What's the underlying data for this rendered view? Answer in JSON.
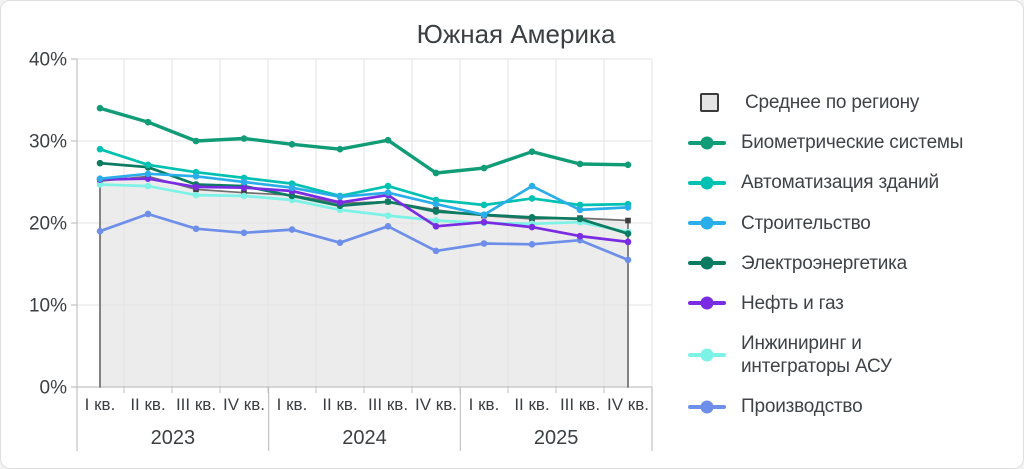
{
  "title": "Южная Америка",
  "style": {
    "text_color": "#3c4043",
    "grid_color": "#e3e3e3",
    "axis_color": "#c2c2c2",
    "background": "#ffffff"
  },
  "chart_data": {
    "type": "line",
    "title": "Южная Америка",
    "x_labels": [
      "I кв.",
      "II кв.",
      "III кв.",
      "IV кв.",
      "I кв.",
      "II кв.",
      "III кв.",
      "IV кв.",
      "I кв.",
      "II кв.",
      "III кв.",
      "IV кв."
    ],
    "year_groups": [
      {
        "label": "2023",
        "quarters": 4
      },
      {
        "label": "2024",
        "quarters": 4
      },
      {
        "label": "2025",
        "quarters": 4
      }
    ],
    "y_tick_labels": [
      "0%",
      "10%",
      "20%",
      "30%",
      "40%"
    ],
    "ylim": [
      0,
      40
    ],
    "y_unit": "%",
    "grid": true,
    "legend_position": "right",
    "series": [
      {
        "id": "srednee",
        "name": "Среднее по региону",
        "type": "area",
        "color": "#6f6f6f",
        "fill": "#ececec",
        "marker": "square",
        "marker_color": "#3e3e3e",
        "z": 0,
        "values": [
          25.1,
          25.7,
          24.1,
          23.7,
          23.4,
          22.4,
          22.6,
          21.6,
          20.9,
          20.5,
          20.6,
          20.3
        ]
      },
      {
        "id": "biometric-systems",
        "name": "Биометрические системы",
        "type": "line",
        "color": "#109c77",
        "marker": "circle",
        "z": 7,
        "values": [
          34.0,
          32.3,
          30.0,
          30.3,
          29.6,
          29.0,
          30.1,
          26.1,
          26.7,
          28.7,
          27.2,
          27.1
        ]
      },
      {
        "id": "building-automation",
        "name": "Автоматизация зданий",
        "type": "line",
        "color": "#00c1b2",
        "marker": "circle",
        "z": 5,
        "values": [
          29.0,
          27.1,
          26.2,
          25.5,
          24.8,
          23.3,
          24.5,
          22.8,
          22.2,
          23.0,
          22.2,
          22.3
        ]
      },
      {
        "id": "construction",
        "name": "Строительство",
        "type": "line",
        "color": "#2aaee9",
        "marker": "circle",
        "z": 6,
        "values": [
          25.4,
          26.0,
          25.7,
          25.0,
          24.3,
          23.2,
          23.7,
          22.3,
          21.0,
          24.5,
          21.6,
          21.9
        ]
      },
      {
        "id": "power-industry",
        "name": "Электроэнергетика",
        "type": "line",
        "color": "#0b7b61",
        "marker": "circle",
        "z": 3,
        "values": [
          27.3,
          26.8,
          24.7,
          24.5,
          23.3,
          22.1,
          22.6,
          21.4,
          21.0,
          20.7,
          20.5,
          18.7
        ]
      },
      {
        "id": "oil-gas",
        "name": "Нефть и газ",
        "type": "line",
        "color": "#7a2ce2",
        "marker": "circle",
        "z": 4,
        "values": [
          25.3,
          25.4,
          24.4,
          24.3,
          23.9,
          22.5,
          23.4,
          19.6,
          20.1,
          19.5,
          18.4,
          17.7
        ]
      },
      {
        "id": "engineering-asu",
        "name": "Инжиниринг и\nинтеграторы АСУ",
        "type": "line",
        "color": "#7df2e6",
        "marker": "circle",
        "z": 1,
        "values": [
          24.7,
          24.5,
          23.4,
          23.3,
          22.8,
          21.6,
          20.9,
          20.3,
          20.0,
          19.9,
          20.1,
          18.9
        ]
      },
      {
        "id": "manufacturing",
        "name": "Производство",
        "type": "line",
        "color": "#6e8fe9",
        "marker": "circle",
        "z": 2,
        "values": [
          19.0,
          21.1,
          19.3,
          18.8,
          19.2,
          17.6,
          19.6,
          16.6,
          17.5,
          17.4,
          17.9,
          15.5
        ]
      }
    ]
  }
}
